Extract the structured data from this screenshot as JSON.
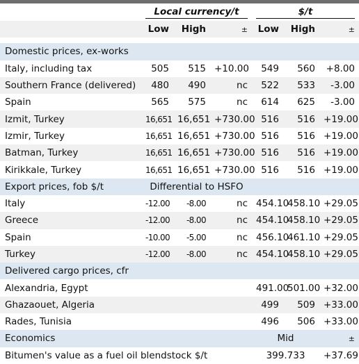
{
  "header": {
    "group_local": "Local currency/t",
    "group_usd": "$/t",
    "cols": [
      "Low",
      "High",
      "±",
      "Low",
      "High",
      "±"
    ]
  },
  "domestic": {
    "title": "Domestic prices, ex-works",
    "rows": [
      {
        "name": "Italy, including tax",
        "v": [
          "505",
          "515",
          "+10.00",
          "549",
          "560",
          "+8.00"
        ]
      },
      {
        "name": "Southern France (delivered)",
        "v": [
          "480",
          "490",
          "nc",
          "522",
          "533",
          "-3.00"
        ]
      },
      {
        "name": "Spain",
        "v": [
          "565",
          "575",
          "nc",
          "614",
          "625",
          "-3.00"
        ]
      },
      {
        "name": "Izmit, Turkey",
        "v": [
          "16,651",
          "16,651",
          "+730.00",
          "516",
          "516",
          "+19.00"
        ]
      },
      {
        "name": "Izmir, Turkey",
        "v": [
          "16,651",
          "16,651",
          "+730.00",
          "516",
          "516",
          "+19.00"
        ]
      },
      {
        "name": "Batman, Turkey",
        "v": [
          "16,651",
          "16,651",
          "+730.00",
          "516",
          "516",
          "+19.00"
        ]
      },
      {
        "name": "Kirikkale, Turkey",
        "v": [
          "16,651",
          "16,651",
          "+730.00",
          "516",
          "516",
          "+19.00"
        ]
      }
    ]
  },
  "export": {
    "title": "Export prices, fob $/t",
    "note": "Differential to HSFO",
    "rows": [
      {
        "name": "Italy",
        "v": [
          "-12.00",
          "-8.00",
          "nc",
          "454.10",
          "458.10",
          "+29.05"
        ]
      },
      {
        "name": "Greece",
        "v": [
          "-12.00",
          "-8.00",
          "nc",
          "454.10",
          "458.10",
          "+29.05"
        ]
      },
      {
        "name": "Spain",
        "v": [
          "-10.00",
          "-5.00",
          "nc",
          "456.10",
          "461.10",
          "+29.05"
        ]
      },
      {
        "name": "Turkey",
        "v": [
          "-12.00",
          "-8.00",
          "nc",
          "454.10",
          "458.10",
          "+29.05"
        ]
      }
    ]
  },
  "cargo": {
    "title": "Delivered cargo prices, cfr",
    "rows": [
      {
        "name": "Alexandria, Egypt",
        "v": [
          "491.00",
          "501.00",
          "+32.00"
        ]
      },
      {
        "name": "Ghazaouet, Algeria",
        "v": [
          "499",
          "509",
          "+33.00"
        ]
      },
      {
        "name": "Rades, Tunisia",
        "v": [
          "496",
          "506",
          "+33.00"
        ]
      }
    ]
  },
  "economics": {
    "title": "Economics",
    "mid_label": "Mid",
    "pm_label": "±",
    "row": {
      "name": "Bitumen's value as a fuel oil blendstock $/t",
      "mid": "399.733",
      "change": "+37.69"
    }
  }
}
